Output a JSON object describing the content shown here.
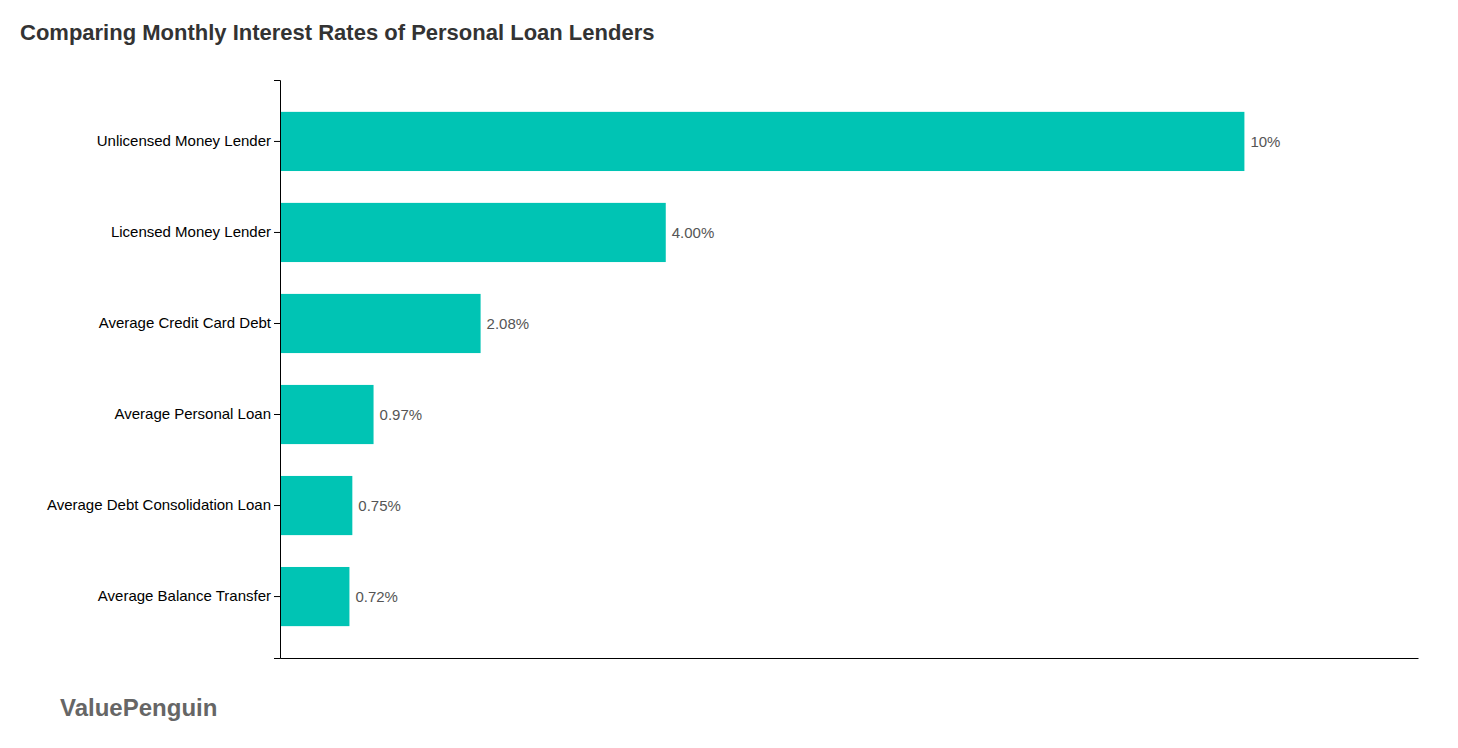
{
  "chart_data": {
    "type": "bar",
    "orientation": "horizontal",
    "title": "Comparing Monthly Interest Rates of Personal Loan Lenders",
    "categories": [
      "Average Balance Transfer",
      "Average Debt Consolidation Loan",
      "Average Personal Loan",
      "Average Credit Card Debt",
      "Licensed Money Lender",
      "Unlicensed Money Lender"
    ],
    "values": [
      0.72,
      0.75,
      0.97,
      2.08,
      4.0,
      10.0
    ],
    "value_labels": [
      "0.72%",
      "0.75%",
      "0.97%",
      "2.08%",
      "4.00%",
      "10%"
    ],
    "data_labels": true,
    "color": "#00C4B4",
    "xlim": [
      0,
      11.8
    ],
    "tick_labels": "y",
    "grid": false,
    "annotations": [
      "ValuePenguin"
    ]
  }
}
